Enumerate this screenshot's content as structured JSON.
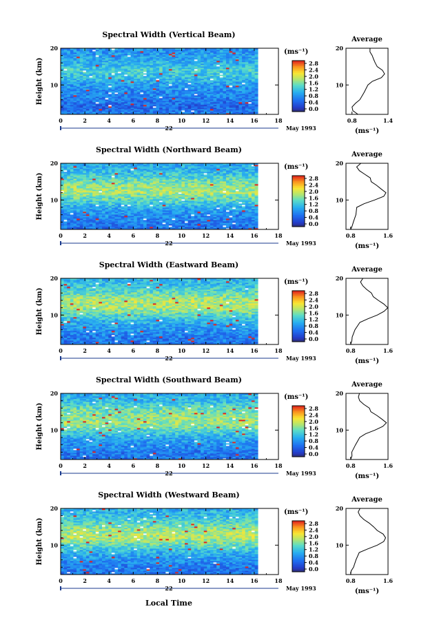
{
  "figure": {
    "xlabel_bottom": "Local Time",
    "date_label": "May 1993",
    "day_label": "22",
    "colorbar_unit": "(ms⁻¹)",
    "colorbar_ticks": [
      "0.0",
      "0.4",
      "0.8",
      "1.2",
      "1.6",
      "2.0",
      "2.4",
      "2.8"
    ],
    "profile_title": "Average",
    "profile_unit": "(ms⁻¹)",
    "ylabel": "Height (km)"
  },
  "chart_data": [
    {
      "type": "heatmap",
      "title": "Spectral Width (Vertical Beam)",
      "xlabel": "Local Time",
      "ylabel": "Height (km)",
      "x_ticks": [
        "0",
        "2",
        "4",
        "6",
        "8",
        "10",
        "12",
        "14",
        "16",
        "18"
      ],
      "y_ticks": [
        "10",
        "20"
      ],
      "xlim": [
        0,
        18
      ],
      "ylim": [
        2,
        20
      ],
      "data_end_hour": 16.3,
      "value_unit": "ms⁻¹",
      "color_range": [
        0.0,
        3.0
      ],
      "band_profile": [
        {
          "height": 2,
          "value": 0.8
        },
        {
          "height": 4,
          "value": 0.6
        },
        {
          "height": 6,
          "value": 0.75
        },
        {
          "height": 8,
          "value": 0.85
        },
        {
          "height": 10,
          "value": 1.0
        },
        {
          "height": 12,
          "value": 1.3
        },
        {
          "height": 14,
          "value": 1.4
        },
        {
          "height": 16,
          "value": 1.2
        },
        {
          "height": 18,
          "value": 1.0
        },
        {
          "height": 20,
          "value": 0.95
        }
      ],
      "average_profile": {
        "xlabel": "(ms⁻¹)",
        "x_ticks": [
          "0.8",
          "1.4"
        ],
        "xlim": [
          0.7,
          1.4
        ],
        "y_ticks": [
          "10",
          "20"
        ],
        "ylim": [
          2,
          20
        ],
        "points": [
          [
            0.9,
            2
          ],
          [
            0.82,
            3
          ],
          [
            0.8,
            4
          ],
          [
            0.85,
            5
          ],
          [
            0.92,
            6
          ],
          [
            1.0,
            8
          ],
          [
            1.05,
            10
          ],
          [
            1.15,
            11
          ],
          [
            1.28,
            12
          ],
          [
            1.35,
            13
          ],
          [
            1.3,
            14
          ],
          [
            1.22,
            15
          ],
          [
            1.2,
            16
          ],
          [
            1.15,
            17
          ],
          [
            1.12,
            18
          ],
          [
            1.1,
            19
          ],
          [
            1.1,
            20
          ]
        ]
      }
    },
    {
      "type": "heatmap",
      "title": "Spectral Width (Northward Beam)",
      "xlabel": "Local Time",
      "ylabel": "Height (km)",
      "x_ticks": [
        "0",
        "2",
        "4",
        "6",
        "8",
        "10",
        "12",
        "14",
        "16",
        "18"
      ],
      "y_ticks": [
        "10",
        "20"
      ],
      "xlim": [
        0,
        18
      ],
      "ylim": [
        2,
        20
      ],
      "data_end_hour": 16.3,
      "value_unit": "ms⁻¹",
      "color_range": [
        0.0,
        3.0
      ],
      "band_profile": [
        {
          "height": 2,
          "value": 0.7
        },
        {
          "height": 4,
          "value": 0.75
        },
        {
          "height": 6,
          "value": 0.9
        },
        {
          "height": 8,
          "value": 1.1
        },
        {
          "height": 10,
          "value": 1.5
        },
        {
          "height": 12,
          "value": 1.9
        },
        {
          "height": 14,
          "value": 1.8
        },
        {
          "height": 16,
          "value": 1.5
        },
        {
          "height": 18,
          "value": 1.2
        },
        {
          "height": 20,
          "value": 1.1
        }
      ],
      "average_profile": {
        "xlabel": "(ms⁻¹)",
        "x_ticks": [
          "0.8",
          "1.6"
        ],
        "xlim": [
          0.7,
          1.6
        ],
        "y_ticks": [
          "10",
          "20"
        ],
        "ylim": [
          2,
          20
        ],
        "points": [
          [
            0.8,
            2
          ],
          [
            0.82,
            3
          ],
          [
            0.85,
            4
          ],
          [
            0.9,
            6
          ],
          [
            0.95,
            8
          ],
          [
            1.1,
            9
          ],
          [
            1.3,
            10
          ],
          [
            1.5,
            11
          ],
          [
            1.55,
            12
          ],
          [
            1.45,
            13
          ],
          [
            1.35,
            14
          ],
          [
            1.25,
            15
          ],
          [
            1.2,
            16
          ],
          [
            1.1,
            17
          ],
          [
            1.0,
            18
          ],
          [
            0.95,
            19
          ],
          [
            1.0,
            20
          ]
        ]
      }
    },
    {
      "type": "heatmap",
      "title": "Spectral Width (Eastward Beam)",
      "xlabel": "Local Time",
      "ylabel": "Height (km)",
      "x_ticks": [
        "0",
        "2",
        "4",
        "6",
        "8",
        "10",
        "12",
        "14",
        "16",
        "18"
      ],
      "y_ticks": [
        "10",
        "20"
      ],
      "xlim": [
        0,
        18
      ],
      "ylim": [
        2,
        20
      ],
      "data_end_hour": 16.3,
      "value_unit": "ms⁻¹",
      "color_range": [
        0.0,
        3.0
      ],
      "band_profile": [
        {
          "height": 2,
          "value": 0.7
        },
        {
          "height": 4,
          "value": 0.75
        },
        {
          "height": 6,
          "value": 0.95
        },
        {
          "height": 8,
          "value": 1.15
        },
        {
          "height": 10,
          "value": 1.5
        },
        {
          "height": 12,
          "value": 1.9
        },
        {
          "height": 14,
          "value": 1.9
        },
        {
          "height": 16,
          "value": 1.6
        },
        {
          "height": 18,
          "value": 1.3
        },
        {
          "height": 20,
          "value": 1.2
        }
      ],
      "average_profile": {
        "xlabel": "(ms⁻¹)",
        "x_ticks": [
          "0.8",
          "1.6"
        ],
        "xlim": [
          0.7,
          1.6
        ],
        "y_ticks": [
          "10",
          "20"
        ],
        "ylim": [
          2,
          20
        ],
        "points": [
          [
            0.8,
            2
          ],
          [
            0.82,
            3
          ],
          [
            0.85,
            4
          ],
          [
            0.9,
            6
          ],
          [
            1.0,
            8
          ],
          [
            1.15,
            9
          ],
          [
            1.35,
            10
          ],
          [
            1.52,
            11
          ],
          [
            1.58,
            12
          ],
          [
            1.5,
            13
          ],
          [
            1.4,
            14
          ],
          [
            1.3,
            15
          ],
          [
            1.25,
            16
          ],
          [
            1.15,
            17
          ],
          [
            1.05,
            18
          ],
          [
            1.0,
            19
          ],
          [
            1.05,
            20
          ]
        ]
      }
    },
    {
      "type": "heatmap",
      "title": "Spectral Width (Southward Beam)",
      "xlabel": "Local Time",
      "ylabel": "Height (km)",
      "x_ticks": [
        "0",
        "2",
        "4",
        "6",
        "8",
        "10",
        "12",
        "14",
        "16",
        "18"
      ],
      "y_ticks": [
        "10",
        "20"
      ],
      "xlim": [
        0,
        18
      ],
      "ylim": [
        2,
        20
      ],
      "data_end_hour": 16.3,
      "value_unit": "ms⁻¹",
      "color_range": [
        0.0,
        3.0
      ],
      "band_profile": [
        {
          "height": 2,
          "value": 0.7
        },
        {
          "height": 4,
          "value": 0.75
        },
        {
          "height": 6,
          "value": 0.9
        },
        {
          "height": 8,
          "value": 1.1
        },
        {
          "height": 10,
          "value": 1.5
        },
        {
          "height": 12,
          "value": 1.85
        },
        {
          "height": 14,
          "value": 1.8
        },
        {
          "height": 16,
          "value": 1.55
        },
        {
          "height": 18,
          "value": 1.25
        },
        {
          "height": 20,
          "value": 1.1
        }
      ],
      "average_profile": {
        "xlabel": "(ms⁻¹)",
        "x_ticks": [
          "0.8",
          "1.6"
        ],
        "xlim": [
          0.7,
          1.6
        ],
        "y_ticks": [
          "10",
          "20"
        ],
        "ylim": [
          2,
          20
        ],
        "points": [
          [
            0.8,
            2
          ],
          [
            0.82,
            3
          ],
          [
            0.84,
            4
          ],
          [
            0.9,
            6
          ],
          [
            0.98,
            8
          ],
          [
            1.1,
            9
          ],
          [
            1.3,
            10
          ],
          [
            1.5,
            11
          ],
          [
            1.55,
            12
          ],
          [
            1.45,
            13
          ],
          [
            1.35,
            14
          ],
          [
            1.25,
            15
          ],
          [
            1.2,
            16
          ],
          [
            1.1,
            17
          ],
          [
            1.0,
            18
          ],
          [
            0.95,
            19
          ],
          [
            1.0,
            20
          ]
        ]
      }
    },
    {
      "type": "heatmap",
      "title": "Spectral Width (Westward Beam)",
      "xlabel": "Local Time",
      "ylabel": "Height (km)",
      "x_ticks": [
        "0",
        "2",
        "4",
        "6",
        "8",
        "10",
        "12",
        "14",
        "16",
        "18"
      ],
      "y_ticks": [
        "10",
        "20"
      ],
      "xlim": [
        0,
        18
      ],
      "ylim": [
        2,
        20
      ],
      "data_end_hour": 16.3,
      "value_unit": "ms⁻¹",
      "color_range": [
        0.0,
        3.0
      ],
      "band_profile": [
        {
          "height": 2,
          "value": 0.7
        },
        {
          "height": 4,
          "value": 0.75
        },
        {
          "height": 6,
          "value": 0.95
        },
        {
          "height": 8,
          "value": 1.15
        },
        {
          "height": 10,
          "value": 1.55
        },
        {
          "height": 12,
          "value": 1.95
        },
        {
          "height": 14,
          "value": 1.85
        },
        {
          "height": 16,
          "value": 1.55
        },
        {
          "height": 18,
          "value": 1.25
        },
        {
          "height": 20,
          "value": 1.15
        }
      ],
      "average_profile": {
        "xlabel": "(ms⁻¹)",
        "x_ticks": [
          "0.8",
          "1.6"
        ],
        "xlim": [
          0.7,
          1.6
        ],
        "y_ticks": [
          "10",
          "20"
        ],
        "ylim": [
          2,
          20
        ],
        "points": [
          [
            0.8,
            2
          ],
          [
            0.82,
            3
          ],
          [
            0.85,
            4
          ],
          [
            0.9,
            6
          ],
          [
            1.0,
            8
          ],
          [
            1.15,
            9
          ],
          [
            1.35,
            10
          ],
          [
            1.5,
            11
          ],
          [
            1.55,
            12
          ],
          [
            1.48,
            13
          ],
          [
            1.38,
            14
          ],
          [
            1.28,
            15
          ],
          [
            1.2,
            16
          ],
          [
            1.1,
            17
          ],
          [
            1.02,
            18
          ],
          [
            0.98,
            19
          ],
          [
            1.0,
            20
          ]
        ]
      }
    }
  ]
}
